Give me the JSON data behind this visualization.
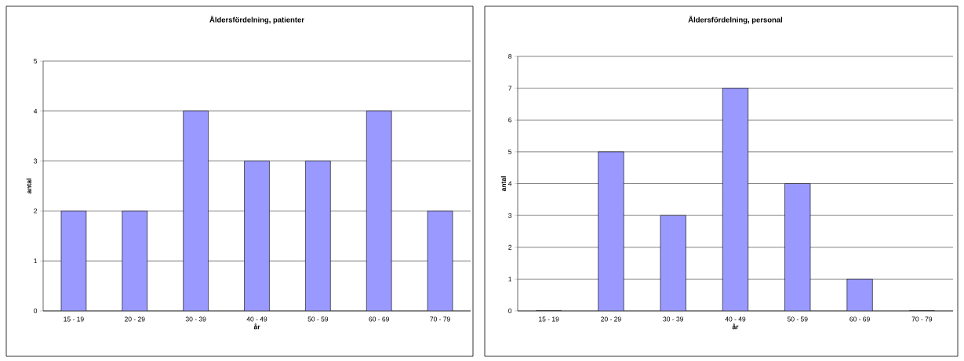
{
  "chart_data": [
    {
      "type": "bar",
      "title": "Åldersfördelning, patienter",
      "xlabel": "år",
      "ylabel": "antal",
      "categories": [
        "15 - 19",
        "20 - 29",
        "30 - 39",
        "40 - 49",
        "50 - 59",
        "60 - 69",
        "70 - 79"
      ],
      "values": [
        2,
        2,
        4,
        3,
        3,
        4,
        2
      ],
      "color": "#9999ff",
      "ylim": [
        0,
        5
      ],
      "yticks": [
        0,
        1,
        2,
        3,
        4,
        5
      ],
      "grid": "y"
    },
    {
      "type": "bar",
      "title": "Åldersfördelning, personal",
      "xlabel": "år",
      "ylabel": "antal",
      "categories": [
        "15 - 19",
        "20 - 29",
        "30 - 39",
        "40 - 49",
        "50 - 59",
        "60 - 69",
        "70 - 79"
      ],
      "values": [
        0,
        5,
        3,
        7,
        4,
        1,
        0
      ],
      "color": "#9999ff",
      "ylim": [
        0,
        8
      ],
      "yticks": [
        0,
        1,
        2,
        3,
        4,
        5,
        6,
        7,
        8
      ],
      "grid": "y"
    }
  ]
}
